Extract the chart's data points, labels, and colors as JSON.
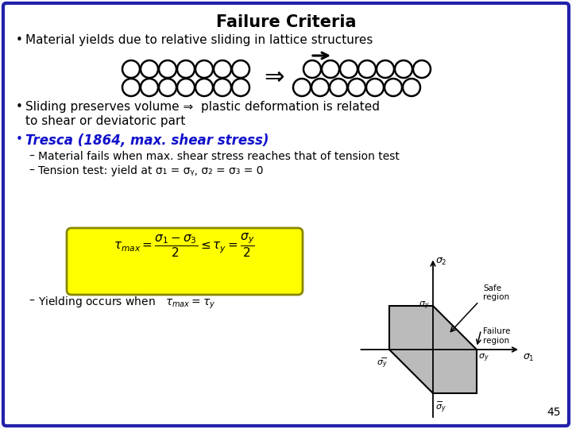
{
  "title": "Failure Criteria",
  "background_color": "#f8f8ff",
  "border_color": "#2222aa",
  "bullet1": "Material yields due to relative sliding in lattice structures",
  "bullet3": "Tresca (1864, max. shear stress)",
  "bullet3_color": "#1111cc",
  "sub1": "Material fails when max. shear stress reaches that of tension test",
  "page_number": "45",
  "formula_bg": "#ffff00",
  "diagram_gray": "#bbbbbb"
}
